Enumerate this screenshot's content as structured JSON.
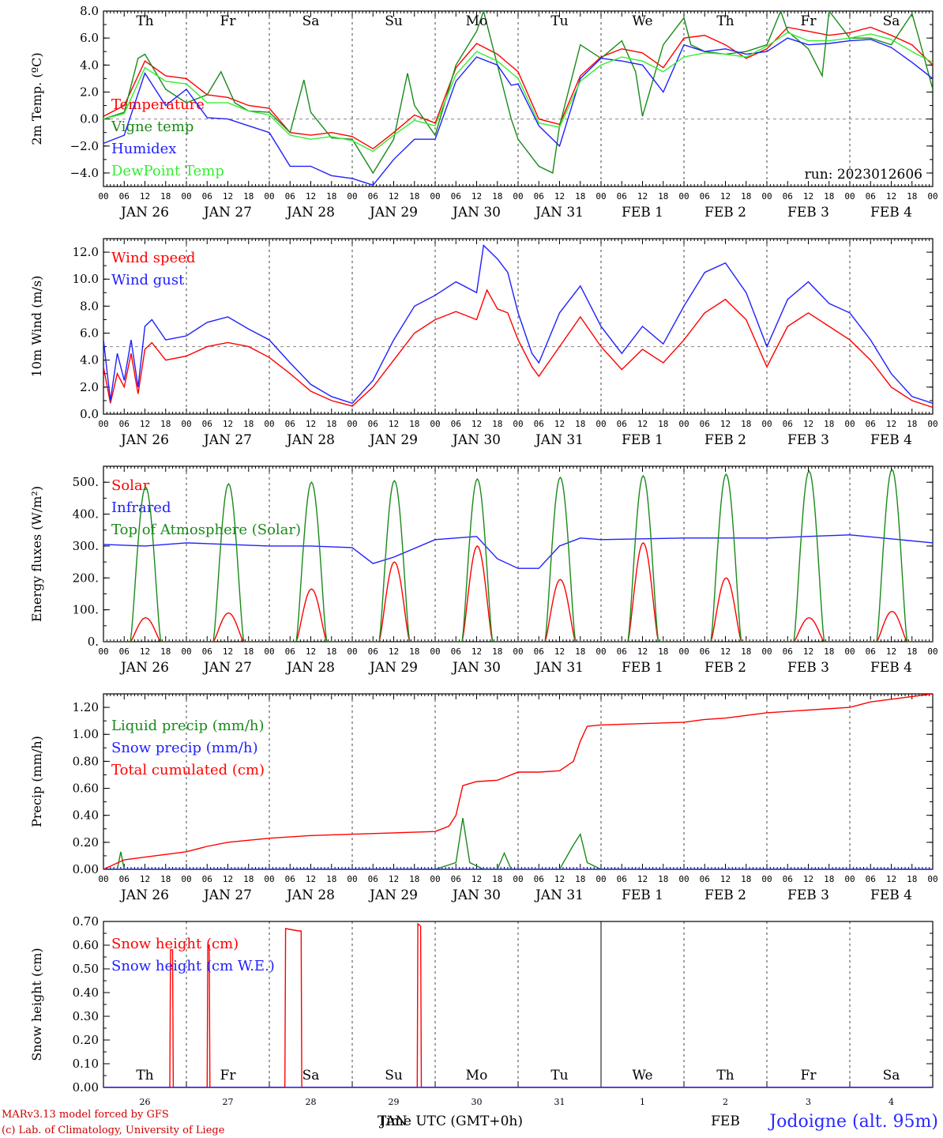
{
  "colors": {
    "red": "#ff0000",
    "darkgreen": "#1a8a1a",
    "blue": "#2020ff",
    "lightgreen": "#33ee33",
    "black": "#000000"
  },
  "x_axis": {
    "hour_labels": [
      "00",
      "06",
      "12",
      "18"
    ],
    "days": [
      "Th",
      "Fr",
      "Sa",
      "Su",
      "Mo",
      "Tu",
      "We",
      "Th",
      "Fr",
      "Sa"
    ],
    "day_colors": [
      "#000000",
      "#000000",
      "#ff0000",
      "#ff0000",
      "#000000",
      "#000000",
      "#000000",
      "#000000",
      "#000000",
      "#ff0000"
    ],
    "dates": [
      "JAN 26",
      "JAN 27",
      "JAN 28",
      "JAN 29",
      "JAN 30",
      "JAN 31",
      "FEB  1",
      "FEB  2",
      "FEB  3",
      "FEB  4"
    ],
    "bottom_numbers": [
      "26",
      "27",
      "28",
      "29",
      "30",
      "31",
      "1",
      "2",
      "3",
      "4"
    ],
    "month_left": "JAN",
    "month_right": "FEB",
    "title": "Time UTC (GMT+0h)"
  },
  "run_label": "run: 2023012606",
  "location": "Jodoigne (alt. 95m)",
  "footer": {
    "line1": "MARv3.13 model forced by GFS",
    "line2": "(c) Lab. of Climatology, University of Liege"
  },
  "chart_data": [
    {
      "type": "line",
      "id": "temperature",
      "ylabel": "2m Temp. (ºC)",
      "ylim": [
        -5,
        8
      ],
      "yticks": [
        "8.0",
        "6.0",
        "4.0",
        "2.0",
        "0.0",
        "−2.0",
        "−4.0"
      ],
      "ytick_values": [
        8,
        6,
        4,
        2,
        0,
        -2,
        -4
      ],
      "reference_line": 0,
      "x_unit": "hours since JAN 26 00 UTC",
      "series": [
        {
          "name": "Temperature",
          "color": "#ff0000",
          "x": [
            0,
            6,
            12,
            18,
            24,
            30,
            36,
            42,
            48,
            54,
            60,
            66,
            72,
            78,
            84,
            90,
            96,
            102,
            108,
            114,
            120,
            126,
            132,
            138,
            144,
            150,
            156,
            162,
            168,
            174,
            180,
            186,
            192,
            198,
            204,
            210,
            216,
            222,
            228,
            234,
            240
          ],
          "y": [
            0.2,
            1.0,
            4.3,
            3.2,
            3.0,
            1.8,
            1.6,
            1.0,
            0.8,
            -1.0,
            -1.2,
            -1.0,
            -1.3,
            -2.2,
            -1.0,
            0.3,
            -0.3,
            3.8,
            5.6,
            4.8,
            3.5,
            0.0,
            -0.4,
            3.2,
            4.6,
            5.2,
            4.9,
            3.8,
            6.0,
            6.2,
            5.5,
            4.5,
            5.2,
            6.8,
            6.5,
            6.2,
            6.4,
            6.8,
            6.2,
            5.5,
            4.0
          ]
        },
        {
          "name": "Vigne temp",
          "color": "#1a8a1a",
          "x": [
            0,
            6,
            10,
            12,
            18,
            24,
            30,
            34,
            38,
            42,
            48,
            54,
            58,
            60,
            66,
            72,
            78,
            84,
            88,
            90,
            96,
            102,
            108,
            110,
            114,
            118,
            120,
            126,
            130,
            132,
            138,
            144,
            150,
            154,
            156,
            162,
            168,
            170,
            174,
            180,
            186,
            192,
            196,
            198,
            204,
            208,
            210,
            216,
            222,
            228,
            234,
            236,
            240
          ],
          "y": [
            0.0,
            0.5,
            4.5,
            4.8,
            2.2,
            1.2,
            1.8,
            3.5,
            1.2,
            0.6,
            0.5,
            -1.0,
            2.9,
            0.5,
            -1.4,
            -1.5,
            -4.0,
            -1.5,
            3.4,
            1.0,
            -1.2,
            4.0,
            6.5,
            8.0,
            4.0,
            0.0,
            -1.5,
            -3.5,
            -4.0,
            -0.5,
            5.5,
            4.5,
            5.8,
            3.5,
            0.2,
            5.5,
            7.5,
            5.5,
            5.0,
            4.8,
            5.0,
            5.5,
            8.0,
            6.5,
            5.2,
            3.2,
            8.0,
            6.0,
            6.0,
            5.5,
            7.8,
            6.0,
            2.2
          ]
        },
        {
          "name": "Humidex",
          "color": "#2020ff",
          "x": [
            0,
            6,
            12,
            18,
            24,
            30,
            36,
            42,
            48,
            54,
            60,
            66,
            72,
            78,
            84,
            90,
            96,
            102,
            108,
            114,
            118,
            120,
            126,
            132,
            138,
            144,
            150,
            156,
            162,
            168,
            174,
            180,
            186,
            192,
            198,
            204,
            210,
            216,
            222,
            228,
            234,
            240
          ],
          "y": [
            -1.8,
            -1.2,
            3.4,
            1.0,
            2.2,
            0.1,
            0.0,
            -0.5,
            -1.0,
            -3.5,
            -3.5,
            -4.2,
            -4.4,
            -4.9,
            -3.0,
            -1.5,
            -1.5,
            2.8,
            4.6,
            4.0,
            2.5,
            2.6,
            -0.5,
            -2.0,
            3.0,
            4.5,
            4.3,
            4.0,
            2.0,
            5.5,
            5.0,
            5.2,
            4.8,
            5.0,
            6.0,
            5.5,
            5.6,
            5.8,
            5.9,
            5.3,
            4.2,
            3.0
          ]
        },
        {
          "name": "DewPoint Temp",
          "color": "#33ee33",
          "x": [
            0,
            6,
            12,
            18,
            24,
            30,
            36,
            42,
            48,
            54,
            60,
            66,
            72,
            78,
            84,
            90,
            96,
            102,
            108,
            114,
            120,
            126,
            132,
            138,
            144,
            150,
            156,
            162,
            168,
            174,
            180,
            186,
            192,
            198,
            204,
            210,
            216,
            222,
            228,
            234,
            240
          ],
          "y": [
            0.0,
            0.4,
            3.8,
            2.8,
            2.6,
            1.2,
            1.2,
            0.6,
            0.3,
            -1.2,
            -1.5,
            -1.3,
            -1.6,
            -2.4,
            -1.2,
            -0.1,
            -0.5,
            3.3,
            5.0,
            4.3,
            3.0,
            -0.3,
            -0.6,
            2.8,
            4.0,
            4.6,
            4.3,
            3.5,
            4.6,
            4.9,
            4.8,
            4.6,
            5.4,
            6.4,
            5.8,
            5.8,
            6.0,
            6.3,
            5.9,
            5.0,
            4.2
          ]
        }
      ]
    },
    {
      "type": "line",
      "id": "wind",
      "ylabel": "10m Wind (m/s)",
      "ylim": [
        0,
        13
      ],
      "yticks": [
        "12.0",
        "10.0",
        "8.0",
        "6.0",
        "4.0",
        "2.0",
        "0.0"
      ],
      "ytick_values": [
        12,
        10,
        8,
        6,
        4,
        2,
        0
      ],
      "reference_line": 5,
      "x_unit": "hours since JAN 26 00 UTC",
      "series": [
        {
          "name": "Wind speed",
          "color": "#ff0000",
          "x": [
            0,
            2,
            4,
            6,
            8,
            10,
            12,
            14,
            18,
            24,
            30,
            36,
            42,
            48,
            54,
            60,
            66,
            72,
            78,
            84,
            90,
            96,
            102,
            108,
            111,
            114,
            117,
            120,
            124,
            126,
            132,
            138,
            144,
            150,
            156,
            162,
            168,
            174,
            180,
            186,
            192,
            198,
            204,
            210,
            216,
            222,
            228,
            234,
            240
          ],
          "y": [
            3.5,
            0.8,
            3.0,
            2.0,
            4.5,
            1.5,
            4.8,
            5.3,
            4.0,
            4.3,
            5.0,
            5.3,
            5.0,
            4.2,
            3.0,
            1.7,
            1.0,
            0.6,
            2.0,
            4.0,
            6.0,
            7.0,
            7.6,
            7.0,
            9.2,
            7.8,
            7.5,
            5.5,
            3.5,
            2.8,
            5.0,
            7.2,
            5.0,
            3.3,
            4.8,
            3.8,
            5.5,
            7.5,
            8.5,
            7.0,
            3.5,
            6.5,
            7.5,
            6.5,
            5.5,
            4.0,
            2.0,
            1.0,
            0.5
          ]
        },
        {
          "name": "Wind gust",
          "color": "#2020ff",
          "x": [
            0,
            2,
            4,
            6,
            8,
            10,
            12,
            14,
            18,
            24,
            30,
            36,
            42,
            48,
            54,
            60,
            66,
            72,
            78,
            84,
            90,
            96,
            102,
            108,
            110,
            114,
            117,
            120,
            124,
            126,
            132,
            138,
            144,
            150,
            156,
            162,
            168,
            174,
            180,
            186,
            192,
            198,
            204,
            210,
            216,
            222,
            228,
            234,
            240
          ],
          "y": [
            5.5,
            1.0,
            4.5,
            2.5,
            5.5,
            2.0,
            6.5,
            7.0,
            5.5,
            5.8,
            6.8,
            7.2,
            6.3,
            5.5,
            3.8,
            2.2,
            1.3,
            0.8,
            2.5,
            5.5,
            8.0,
            8.8,
            9.8,
            9.0,
            12.5,
            11.5,
            10.5,
            7.5,
            4.5,
            3.8,
            7.5,
            9.5,
            6.5,
            4.5,
            6.5,
            5.2,
            8.0,
            10.5,
            11.2,
            9.0,
            5.0,
            8.5,
            9.8,
            8.2,
            7.5,
            5.5,
            3.0,
            1.3,
            0.8
          ]
        }
      ]
    },
    {
      "type": "line",
      "id": "energy",
      "ylabel": "Energy fluxes (W/m²)",
      "ylim": [
        0,
        550
      ],
      "yticks": [
        "500.",
        "400.",
        "300.",
        "200.",
        "100.",
        "0."
      ],
      "ytick_values": [
        500,
        400,
        300,
        200,
        100,
        0
      ],
      "x_unit": "hours since JAN 26 00 UTC",
      "series": [
        {
          "name": "Solar",
          "color": "#ff0000",
          "daily_peak": [
            75,
            90,
            165,
            250,
            300,
            195,
            310,
            200,
            75,
            95
          ]
        },
        {
          "name": "Infrared",
          "color": "#2020ff",
          "x": [
            0,
            12,
            24,
            36,
            48,
            60,
            72,
            78,
            84,
            96,
            108,
            114,
            120,
            126,
            132,
            138,
            144,
            168,
            192,
            216,
            240
          ],
          "y": [
            305,
            300,
            310,
            305,
            300,
            300,
            295,
            245,
            265,
            320,
            330,
            260,
            230,
            230,
            300,
            325,
            320,
            325,
            325,
            335,
            310
          ]
        },
        {
          "name": "Top of Atmosphere (Solar)",
          "color": "#1a8a1a",
          "daily_peak": [
            485,
            495,
            500,
            505,
            510,
            515,
            520,
            525,
            535,
            540
          ]
        }
      ]
    },
    {
      "type": "line",
      "id": "precip",
      "ylabel": "Precip (mm/h)",
      "ylim": [
        0,
        1.3
      ],
      "yticks": [
        "1.20",
        "1.00",
        "0.80",
        "0.60",
        "0.40",
        "0.20",
        "0.00"
      ],
      "ytick_values": [
        1.2,
        1.0,
        0.8,
        0.6,
        0.4,
        0.2,
        0
      ],
      "x_unit": "hours since JAN 26 00 UTC",
      "series": [
        {
          "name": "Liquid precip (mm/h)",
          "color": "#1a8a1a",
          "x": [
            0,
            4,
            5,
            6,
            24,
            96,
            102,
            104,
            106,
            110,
            114,
            116,
            118,
            120,
            132,
            136,
            138,
            140,
            144,
            240
          ],
          "y": [
            0,
            0,
            0.13,
            0,
            0,
            0,
            0.05,
            0.38,
            0.05,
            0,
            0,
            0.12,
            0,
            0,
            0,
            0.18,
            0.26,
            0.05,
            0,
            0
          ]
        },
        {
          "name": "Snow precip (mm/h)",
          "color": "#2020ff",
          "x": [
            0,
            240
          ],
          "y": [
            0,
            0
          ]
        },
        {
          "name": "Total cumulated (cm)",
          "color": "#ff0000",
          "x": [
            0,
            6,
            12,
            18,
            24,
            30,
            36,
            48,
            60,
            72,
            84,
            96,
            100,
            102,
            104,
            108,
            114,
            120,
            126,
            132,
            136,
            138,
            140,
            144,
            168,
            174,
            180,
            192,
            204,
            216,
            222,
            228,
            234,
            240
          ],
          "y": [
            0,
            0.07,
            0.09,
            0.11,
            0.13,
            0.17,
            0.2,
            0.23,
            0.25,
            0.26,
            0.27,
            0.28,
            0.32,
            0.4,
            0.62,
            0.65,
            0.66,
            0.72,
            0.72,
            0.73,
            0.8,
            0.95,
            1.06,
            1.07,
            1.09,
            1.11,
            1.12,
            1.16,
            1.18,
            1.2,
            1.24,
            1.26,
            1.28,
            1.3
          ]
        }
      ]
    },
    {
      "type": "line",
      "id": "snow",
      "ylabel": "Snow height (cm)",
      "ylim": [
        0,
        0.7
      ],
      "yticks": [
        "0.70",
        "0.60",
        "0.50",
        "0.40",
        "0.30",
        "0.20",
        "0.10",
        "0.00"
      ],
      "ytick_values": [
        0.7,
        0.6,
        0.5,
        0.4,
        0.3,
        0.2,
        0.1,
        0
      ],
      "x_unit": "hours since JAN 26 00 UTC",
      "series": [
        {
          "name": "Snow height (cm)",
          "color": "#ff0000",
          "x": [
            0,
            19.2,
            19.4,
            20.0,
            20.2,
            30.0,
            30.2,
            30.6,
            30.8,
            52.5,
            52.7,
            56.5,
            57.2,
            57.4,
            90.8,
            91.0,
            91.8,
            92.0,
            240
          ],
          "y": [
            0,
            0,
            0.58,
            0.58,
            0,
            0,
            0.6,
            0.6,
            0,
            0,
            0.67,
            0.66,
            0.66,
            0,
            0,
            0.69,
            0.68,
            0,
            0
          ]
        },
        {
          "name": "Snow height (cm W.E.)",
          "color": "#2020ff",
          "x": [
            0,
            240
          ],
          "y": [
            0,
            0
          ]
        }
      ]
    }
  ]
}
